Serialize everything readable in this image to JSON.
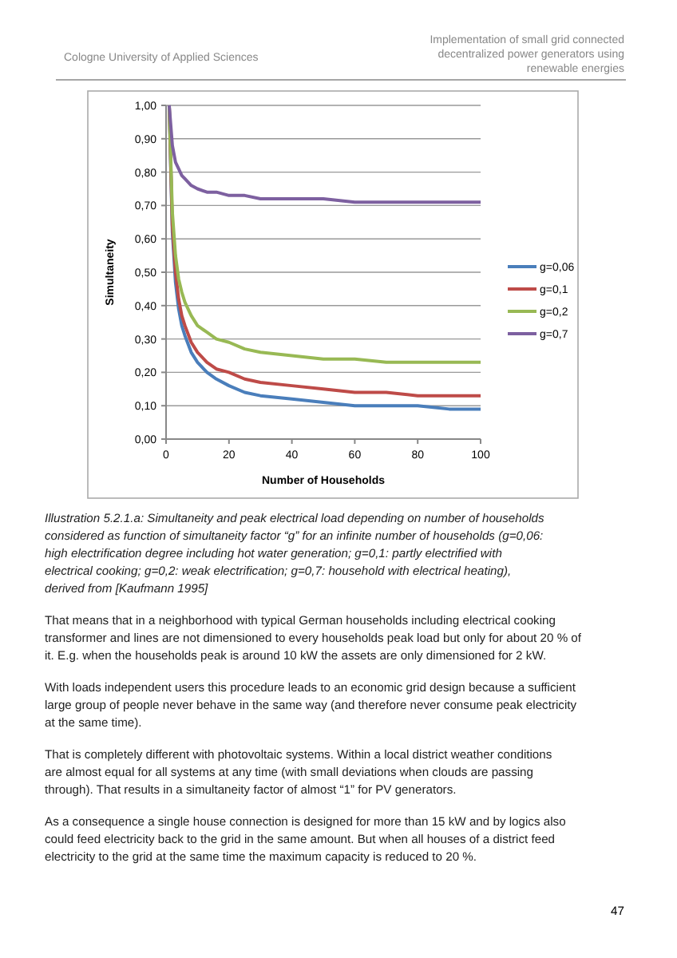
{
  "chart_data": {
    "type": "line",
    "xlabel": "Number of Households",
    "ylabel": "Simultaneity",
    "x": [
      1,
      2,
      3,
      4,
      5,
      6,
      8,
      10,
      13,
      16,
      20,
      25,
      30,
      40,
      50,
      60,
      70,
      80,
      90,
      100
    ],
    "series": [
      {
        "name": "g=0,06",
        "color": "#4a7ebb",
        "values": [
          1,
          0.62,
          0.47,
          0.39,
          0.34,
          0.31,
          0.26,
          0.23,
          0.2,
          0.18,
          0.16,
          0.14,
          0.13,
          0.12,
          0.11,
          0.1,
          0.1,
          0.1,
          0.09,
          0.09
        ]
      },
      {
        "name": "g=0,1",
        "color": "#be4b48",
        "values": [
          1,
          0.64,
          0.5,
          0.42,
          0.37,
          0.34,
          0.29,
          0.26,
          0.23,
          0.21,
          0.2,
          0.18,
          0.17,
          0.16,
          0.15,
          0.14,
          0.14,
          0.13,
          0.13,
          0.13
        ]
      },
      {
        "name": "g=0,2",
        "color": "#98b954",
        "values": [
          1,
          0.68,
          0.55,
          0.48,
          0.44,
          0.41,
          0.37,
          0.34,
          0.32,
          0.3,
          0.29,
          0.27,
          0.26,
          0.25,
          0.24,
          0.24,
          0.23,
          0.23,
          0.23,
          0.23
        ]
      },
      {
        "name": "g=0,7",
        "color": "#7d60a0",
        "values": [
          1,
          0.88,
          0.83,
          0.81,
          0.79,
          0.78,
          0.76,
          0.75,
          0.74,
          0.74,
          0.73,
          0.73,
          0.72,
          0.72,
          0.72,
          0.71,
          0.71,
          0.71,
          0.71,
          0.71
        ]
      }
    ],
    "xlim": [
      0,
      100
    ],
    "xticks": [
      0,
      20,
      40,
      60,
      80,
      100
    ],
    "ylim": [
      0,
      1
    ],
    "yticks": [
      {
        "value": 0,
        "label": "0,00"
      },
      {
        "value": 0.1,
        "label": "0,10"
      },
      {
        "value": 0.2,
        "label": "0,20"
      },
      {
        "value": 0.3,
        "label": "0,30"
      },
      {
        "value": 0.4,
        "label": "0,40"
      },
      {
        "value": 0.5,
        "label": "0,50"
      },
      {
        "value": 0.6,
        "label": "0,60"
      },
      {
        "value": 0.7,
        "label": "0,70"
      },
      {
        "value": 0.8,
        "label": "0,80"
      },
      {
        "value": 0.9,
        "label": "0,90"
      },
      {
        "value": 1,
        "label": "1,00"
      }
    ],
    "grid": "y",
    "legend": "right",
    "marker": "none",
    "line_style": "solid",
    "annotations": [
      "Cologne University of Applied Sciences",
      "Implementation of small grid connected decentralized power generators using renewable energies",
      "Illustration 5.2.1.a: Simultaneity and peak electrical load depending on number of households considered as function of simultaneity factor “g” for an infinite number of households (g=0,06: high electrification degree including hot water generation; g=0,1: partly electrified with electrical cooking; g=0,2: weak electrification; g=0,7: household with electrical heating), derived from [Kaufmann 1995]",
      "That means that in a neighborhood with typical German households including electrical cooking transformer and lines are not dimensioned to every households peak load but only for about 20 % of it. E.g. when the households peak is around 10 kW the assets are only dimensioned for 2 kW.",
      "With loads independent users this procedure leads to an economic grid design because a sufficient large group of people never behave in the same way (and therefore never consume peak electricity at the same time).",
      "That is completely different with photovoltaic systems. Within a local district weather conditions are almost equal for all systems at any time (with small deviations when clouds are passing through). That results in a simultaneity factor of almost “1” for PV generators.",
      "As a consequence a single house connection is designed for more than 15 kW and by logics also could feed electricity back to the grid in the same amount. But when all houses of a district feed electricity to the grid at the same time the maximum capacity is reduced to 20 %.",
      "47"
    ]
  }
}
